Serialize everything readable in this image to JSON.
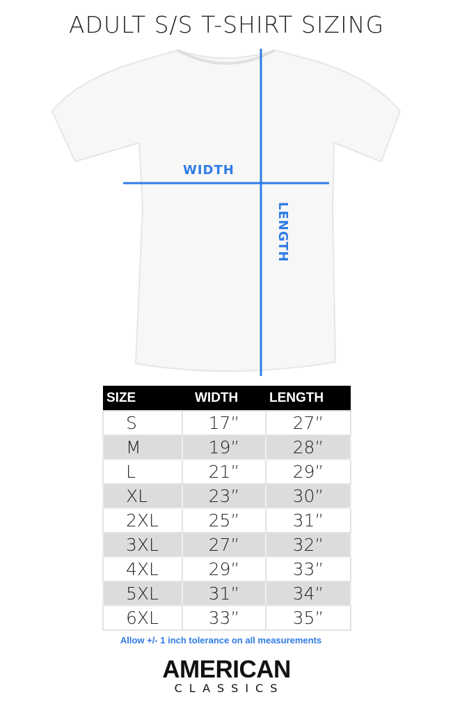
{
  "title": "ADULT S/S T-SHIRT SIZING",
  "diagram": {
    "width_label": "WIDTH",
    "length_label": "LENGTH",
    "line_color": "#2f7be6"
  },
  "table": {
    "headers": [
      "SIZE",
      "WIDTH",
      "LENGTH"
    ],
    "rows": [
      [
        "S",
        "17”",
        "27”"
      ],
      [
        "M",
        "19”",
        "28”"
      ],
      [
        "L",
        "21”",
        "29”"
      ],
      [
        "XL",
        "23”",
        "30”"
      ],
      [
        "2XL",
        "25”",
        "31”"
      ],
      [
        "3XL",
        "27”",
        "32”"
      ],
      [
        "4XL",
        "29”",
        "33”"
      ],
      [
        "5XL",
        "31”",
        "34”"
      ],
      [
        "6XL",
        "33”",
        "35”"
      ]
    ]
  },
  "note": "Allow +/- 1 inch tolerance on all measurements",
  "brand": {
    "line1": "AMERICAN",
    "line2": "CLASSICS"
  }
}
